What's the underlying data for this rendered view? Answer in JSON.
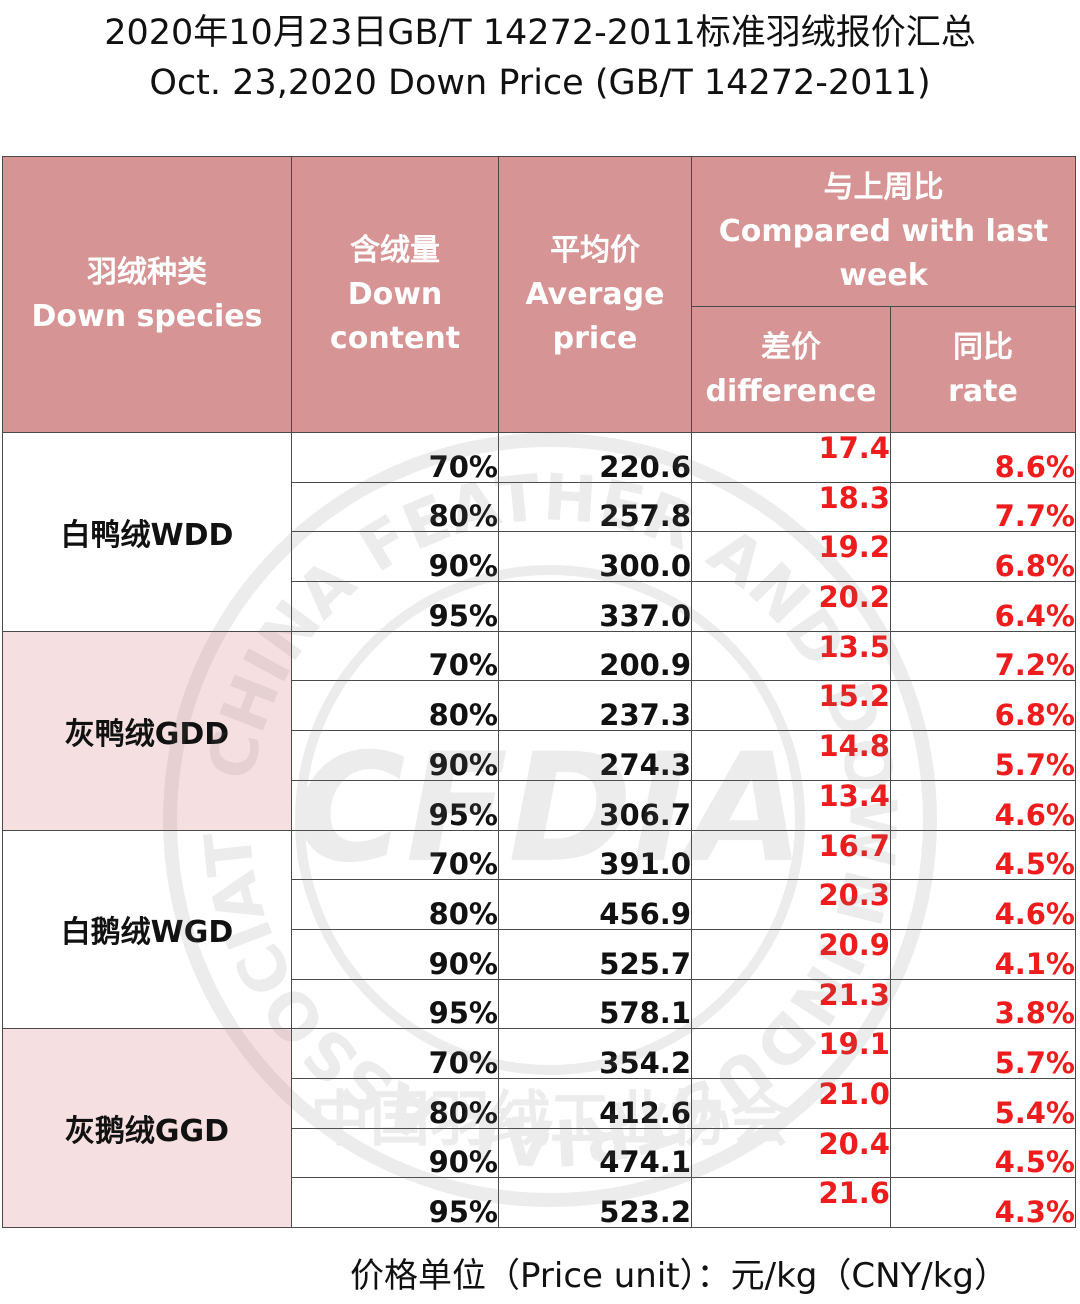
{
  "title": {
    "line1": "2020年10月23日GB/T 14272-2011标准羽绒报价汇总",
    "line2": "Oct. 23,2020 Down Price (GB/T 14272-2011)"
  },
  "headers": {
    "species_cn": "羽绒种类",
    "species_en": "Down species",
    "content_cn": "含绒量",
    "content_en1": "Down",
    "content_en2": "content",
    "price_cn": "平均价",
    "price_en1": "Average",
    "price_en2": "price",
    "compare_cn": "与上周比",
    "compare_en1": "Compared with last",
    "compare_en2": "week",
    "diff_cn": "差价",
    "diff_en": "difference",
    "rate_cn": "同比",
    "rate_en": "rate"
  },
  "groups": [
    {
      "species": "白鸭绒WDD",
      "rows": [
        {
          "content": "70%",
          "price": "220.6",
          "diff": "17.4",
          "rate": "8.6%"
        },
        {
          "content": "80%",
          "price": "257.8",
          "diff": "18.3",
          "rate": "7.7%"
        },
        {
          "content": "90%",
          "price": "300.0",
          "diff": "19.2",
          "rate": "6.8%"
        },
        {
          "content": "95%",
          "price": "337.0",
          "diff": "20.2",
          "rate": "6.4%"
        }
      ]
    },
    {
      "species": "灰鸭绒GDD",
      "rows": [
        {
          "content": "70%",
          "price": "200.9",
          "diff": "13.5",
          "rate": "7.2%"
        },
        {
          "content": "80%",
          "price": "237.3",
          "diff": "15.2",
          "rate": "6.8%"
        },
        {
          "content": "90%",
          "price": "274.3",
          "diff": "14.8",
          "rate": "5.7%"
        },
        {
          "content": "95%",
          "price": "306.7",
          "diff": "13.4",
          "rate": "4.6%"
        }
      ]
    },
    {
      "species": "白鹅绒WGD",
      "rows": [
        {
          "content": "70%",
          "price": "391.0",
          "diff": "16.7",
          "rate": "4.5%"
        },
        {
          "content": "80%",
          "price": "456.9",
          "diff": "20.3",
          "rate": "4.6%"
        },
        {
          "content": "90%",
          "price": "525.7",
          "diff": "20.9",
          "rate": "4.1%"
        },
        {
          "content": "95%",
          "price": "578.1",
          "diff": "21.3",
          "rate": "3.8%"
        }
      ]
    },
    {
      "species": "灰鹅绒GGD",
      "rows": [
        {
          "content": "70%",
          "price": "354.2",
          "diff": "19.1",
          "rate": "5.7%"
        },
        {
          "content": "80%",
          "price": "412.6",
          "diff": "21.0",
          "rate": "5.4%"
        },
        {
          "content": "90%",
          "price": "474.1",
          "diff": "20.4",
          "rate": "4.5%"
        },
        {
          "content": "95%",
          "price": "523.2",
          "diff": "21.6",
          "rate": "4.3%"
        }
      ]
    }
  ],
  "watermark": {
    "ring_text": "CHINA FEATHER AND DOWN INDUSTRIAL ASSOCIATION",
    "logo_text": "CFDIA",
    "cn_text": "中国羽绒工业协会"
  },
  "footer": {
    "unit": "价格单位（Price unit）：元/kg（CNY/kg）"
  },
  "colors": {
    "header_bg": "#d79494",
    "header_text": "#ffffff",
    "group_pink": "#f6dfe0",
    "change_red": "#ee1c1c"
  }
}
